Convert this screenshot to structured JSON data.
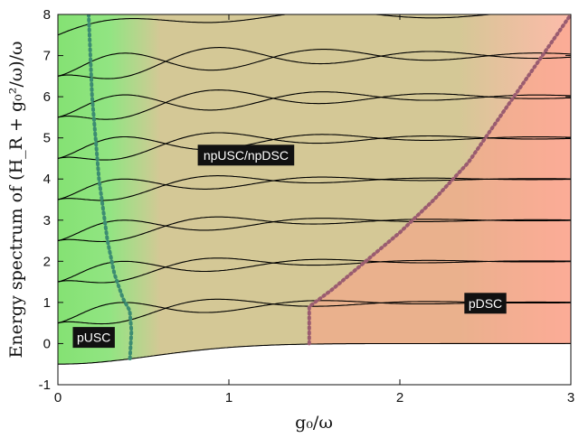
{
  "chart_data": {
    "type": "line",
    "xlabel": "g₀/ω",
    "ylabel": "Energy spectrum of (H_R + g₀²/ω)/ω",
    "xlim": [
      0,
      3
    ],
    "ylim": [
      -1,
      8
    ],
    "x_ticks": [
      "0",
      "1",
      "2",
      "3"
    ],
    "y_ticks": [
      "-1",
      "0",
      "1",
      "2",
      "3",
      "4",
      "5",
      "6",
      "7",
      "8"
    ],
    "grid": false,
    "colors": {
      "pUSC_region": "#7ee06c",
      "npUSC_region": "#cfc28a",
      "pDSC_region": "#fb9f86",
      "left_boundary": "#3c8c72",
      "right_boundary": "#9a5c70",
      "curve": "#000000",
      "label_bg": "#111111"
    },
    "regions": [
      {
        "name": "pUSC",
        "label": "pUSC",
        "x_range": [
          0,
          0.42
        ]
      },
      {
        "name": "npUSC/npDSC",
        "label": "npUSC/npDSC",
        "x_range": [
          0.42,
          1.5
        ]
      },
      {
        "name": "pDSC",
        "label": "pDSC",
        "x_range": [
          1.5,
          3
        ]
      }
    ],
    "region_labels": [
      {
        "text": "pUSC",
        "x": 0.21,
        "y": 0.15
      },
      {
        "text": "npUSC/npDSC",
        "x": 1.1,
        "y": 4.58
      },
      {
        "text": "pDSC",
        "x": 2.5,
        "y": 0.98
      }
    ],
    "boundaries": [
      {
        "name": "left-boundary",
        "style": "dotted",
        "points": [
          [
            0.18,
            8.0
          ],
          [
            0.2,
            6.0
          ],
          [
            0.24,
            4.0
          ],
          [
            0.29,
            2.5
          ],
          [
            0.33,
            1.7
          ],
          [
            0.38,
            1.1
          ],
          [
            0.42,
            0.8
          ],
          [
            0.43,
            0.3
          ],
          [
            0.42,
            -0.45
          ]
        ]
      },
      {
        "name": "right-boundary",
        "style": "dotted",
        "points": [
          [
            1.47,
            0.0
          ],
          [
            1.47,
            0.9
          ],
          [
            1.6,
            1.3
          ],
          [
            1.8,
            2.0
          ],
          [
            2.0,
            2.7
          ],
          [
            2.2,
            3.5
          ],
          [
            2.4,
            4.4
          ],
          [
            2.6,
            5.6
          ],
          [
            2.8,
            6.8
          ],
          [
            3.0,
            8.0
          ]
        ]
      }
    ],
    "levels": [
      0,
      1,
      2,
      3,
      4,
      5,
      6,
      7
    ],
    "crossing_period": 0.63,
    "ground_start": -0.5
  }
}
